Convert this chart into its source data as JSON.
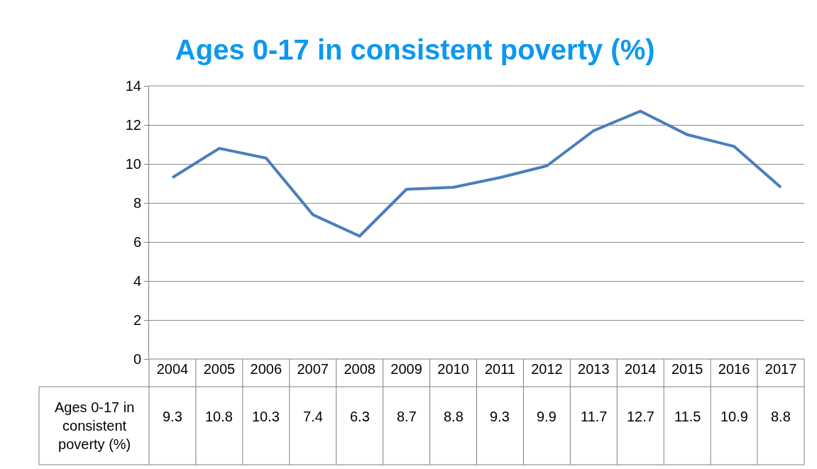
{
  "chart_data": {
    "type": "line",
    "title": "Ages 0-17 in consistent poverty (%)",
    "categories": [
      "2004",
      "2005",
      "2006",
      "2007",
      "2008",
      "2009",
      "2010",
      "2011",
      "2012",
      "2013",
      "2014",
      "2015",
      "2016",
      "2017"
    ],
    "series": [
      {
        "name": "Ages 0-17 in consistent poverty (%)",
        "color": "#4a7ebb",
        "values": [
          9.3,
          10.8,
          10.3,
          7.4,
          6.3,
          8.7,
          8.8,
          9.3,
          9.9,
          11.7,
          12.7,
          11.5,
          10.9,
          8.8
        ]
      }
    ],
    "ylim": [
      0,
      14
    ],
    "yticks": [
      0,
      2,
      4,
      6,
      8,
      10,
      12,
      14
    ],
    "grid": "y",
    "marker": "none",
    "line_style": "solid",
    "data_labels": true
  }
}
